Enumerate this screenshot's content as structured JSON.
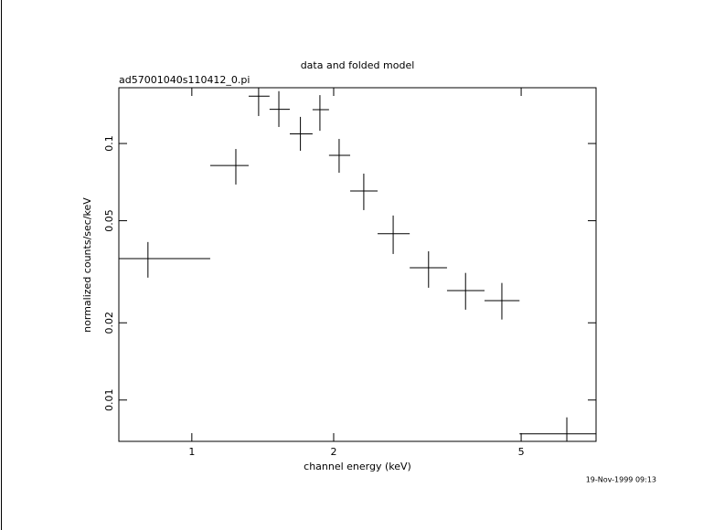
{
  "chart_data": {
    "type": "errorbar",
    "title": "data and folded model",
    "subtitle": "ad57001040s110412_0.pi",
    "x_label": "channel energy (keV)",
    "y_label": "normalized counts/sec/keV",
    "timestamp": "19-Nov-1999 09:13",
    "log_x": true,
    "log_y": true,
    "color": "#000000",
    "xlim": [
      0.7,
      7.21
    ],
    "xticks": [
      1,
      2,
      5
    ],
    "ylim": [
      0.0069,
      0.165
    ],
    "yticks": [
      0.01,
      0.02,
      0.05,
      0.1
    ],
    "x": [
      0.807,
      1.24,
      1.386,
      1.53,
      1.7,
      1.87,
      2.054,
      2.317,
      2.675,
      3.18,
      3.81,
      4.55,
      6.25
    ],
    "x_low": [
      0.7,
      1.094,
      1.32,
      1.462,
      1.614,
      1.804,
      1.955,
      2.168,
      2.479,
      2.9,
      3.48,
      4.18,
      4.96
    ],
    "x_high": [
      1.094,
      1.32,
      1.462,
      1.614,
      1.804,
      1.955,
      2.168,
      2.479,
      2.9,
      3.48,
      4.18,
      4.96,
      7.21
    ],
    "y": [
      0.0356,
      0.0821,
      0.153,
      0.136,
      0.109,
      0.1355,
      0.0899,
      0.0653,
      0.0445,
      0.0328,
      0.0267,
      0.0244,
      0.00738
    ],
    "y_low": [
      0.03,
      0.0692,
      0.128,
      0.116,
      0.0937,
      0.1121,
      0.0769,
      0.055,
      0.0371,
      0.0274,
      0.0225,
      0.0206,
      0.0064
    ],
    "y_high": [
      0.0413,
      0.0952,
      0.165,
      0.16,
      0.127,
      0.1544,
      0.1042,
      0.0763,
      0.0524,
      0.038,
      0.0313,
      0.0286,
      0.00856
    ]
  }
}
